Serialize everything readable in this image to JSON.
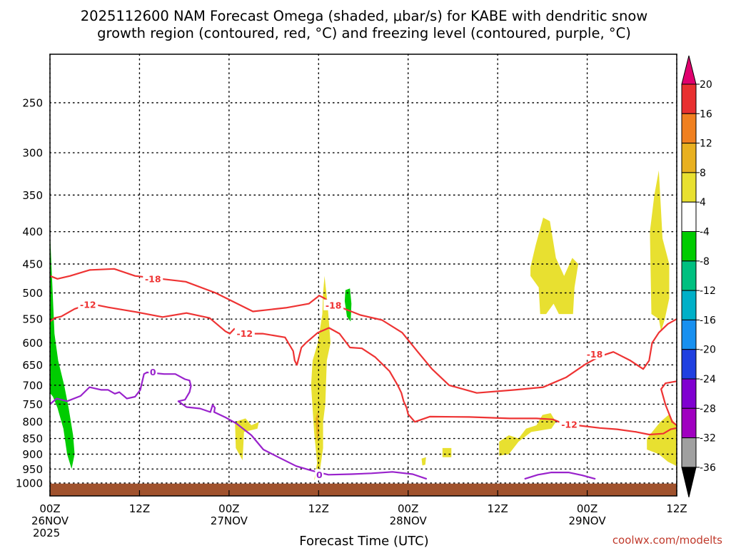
{
  "title_line1": "2025112600 NAM Forecast Omega (shaded, μbar/s) for KABE with dendritic snow",
  "title_line2": "growth region (contoured, red, °C) and freezing level (contoured, purple, °C)",
  "credit": "coolwx.com/modelts",
  "chart_data": {
    "type": "heatmap",
    "title": "2025112600 NAM Forecast Omega (shaded, μbar/s) for KABE with dendritic snow growth region (contoured, red, °C) and freezing level (contoured, purple, °C)",
    "xlabel": "Forecast Time (UTC)",
    "ylabel": "",
    "x_unit": "forecast hour",
    "xlim": [
      0,
      84
    ],
    "y_unit": "hPa",
    "y_scale": "log (pressure)",
    "ylim": [
      1030,
      200
    ],
    "x_ticks": [
      {
        "hour": 0,
        "lines": [
          "00Z",
          "26NOV",
          "2025"
        ]
      },
      {
        "hour": 12,
        "lines": [
          "12Z"
        ]
      },
      {
        "hour": 24,
        "lines": [
          "00Z",
          "27NOV"
        ]
      },
      {
        "hour": 36,
        "lines": [
          "12Z"
        ]
      },
      {
        "hour": 48,
        "lines": [
          "00Z",
          "28NOV"
        ]
      },
      {
        "hour": 60,
        "lines": [
          "12Z"
        ]
      },
      {
        "hour": 72,
        "lines": [
          "00Z",
          "29NOV"
        ]
      },
      {
        "hour": 84,
        "lines": [
          "12Z"
        ]
      }
    ],
    "y_ticks": [
      250,
      300,
      350,
      400,
      450,
      500,
      550,
      600,
      650,
      700,
      750,
      800,
      850,
      900,
      950,
      1000
    ],
    "grid": true,
    "colorbar": {
      "labels": [
        "20",
        "16",
        "12",
        "8",
        "4",
        "-4",
        "-8",
        "-12",
        "-16",
        "-20",
        "-24",
        "-28",
        "-32",
        "-36"
      ],
      "colors": [
        "#e0006e",
        "#e83030",
        "#f08020",
        "#e8b020",
        "#e8e030",
        "#ffffff",
        "#00cc00",
        "#00c080",
        "#00b0c8",
        "#1890f0",
        "#2040e0",
        "#8000d0",
        "#a000c0",
        "#a0a0a0",
        "#000000"
      ]
    },
    "surface": {
      "color": "#a0522d",
      "top_hpa": 1002
    },
    "shaded_regions": [
      {
        "level": "-4",
        "color": "#00cc00",
        "points": [
          [
            0,
            400
          ],
          [
            0.3,
            480
          ],
          [
            0.6,
            580
          ],
          [
            1.1,
            640
          ],
          [
            1.9,
            700
          ],
          [
            2.5,
            760
          ],
          [
            3.1,
            840
          ],
          [
            3.3,
            900
          ],
          [
            2.9,
            950
          ],
          [
            2.3,
            900
          ],
          [
            1.8,
            820
          ],
          [
            1.0,
            760
          ],
          [
            0.4,
            730
          ],
          [
            0,
            720
          ]
        ]
      },
      {
        "level": "-4",
        "color": "#00cc00",
        "points": [
          [
            39.6,
            495
          ],
          [
            40.2,
            492
          ],
          [
            40.4,
            520
          ],
          [
            40.3,
            555
          ],
          [
            39.8,
            545
          ],
          [
            39.5,
            515
          ]
        ]
      },
      {
        "level": "4",
        "color": "#e8e030",
        "points": [
          [
            35.4,
            990
          ],
          [
            35.8,
            930
          ],
          [
            35.4,
            830
          ],
          [
            35.0,
            700
          ],
          [
            35.2,
            640
          ],
          [
            35.9,
            600
          ],
          [
            36.5,
            540
          ],
          [
            36.6,
            500
          ],
          [
            36.8,
            470
          ],
          [
            37.2,
            520
          ],
          [
            37.6,
            600
          ],
          [
            37.1,
            640
          ],
          [
            36.9,
            750
          ],
          [
            36.6,
            800
          ],
          [
            36.6,
            880
          ],
          [
            36.2,
            950
          ]
        ]
      },
      {
        "level": "4",
        "color": "#e8e030",
        "points": [
          [
            24.8,
            800
          ],
          [
            26.2,
            790
          ],
          [
            27.0,
            810
          ],
          [
            28.0,
            800
          ],
          [
            27.8,
            820
          ],
          [
            26.0,
            830
          ],
          [
            25.9,
            880
          ],
          [
            25.8,
            920
          ],
          [
            24.9,
            880
          ]
        ]
      },
      {
        "level": "4",
        "color": "#e8e030",
        "points": [
          [
            49.8,
            915
          ],
          [
            50.4,
            910
          ],
          [
            50.3,
            935
          ],
          [
            49.9,
            938
          ]
        ]
      },
      {
        "level": "4",
        "color": "#e8e030",
        "points": [
          [
            52.6,
            880
          ],
          [
            53.8,
            880
          ],
          [
            53.8,
            910
          ],
          [
            52.6,
            910
          ]
        ]
      },
      {
        "level": "4",
        "color": "#e8e030",
        "points": [
          [
            60.2,
            860
          ],
          [
            61.5,
            840
          ],
          [
            62.8,
            850
          ],
          [
            63.8,
            820
          ],
          [
            65.2,
            810
          ],
          [
            66.0,
            780
          ],
          [
            67.1,
            775
          ],
          [
            67.8,
            800
          ],
          [
            67.2,
            820
          ],
          [
            64.5,
            830
          ],
          [
            62.8,
            860
          ],
          [
            61.5,
            900
          ],
          [
            60.2,
            905
          ]
        ]
      },
      {
        "level": "4",
        "color": "#e8e030",
        "points": [
          [
            64.4,
            455
          ],
          [
            65.1,
            420
          ],
          [
            66.1,
            380
          ],
          [
            67.0,
            385
          ],
          [
            67.8,
            440
          ],
          [
            68.9,
            470
          ],
          [
            70.0,
            440
          ],
          [
            70.8,
            450
          ],
          [
            70.3,
            490
          ],
          [
            70.1,
            540
          ],
          [
            68.2,
            540
          ],
          [
            67.5,
            520
          ],
          [
            66.5,
            540
          ],
          [
            65.7,
            540
          ],
          [
            65.5,
            490
          ],
          [
            64.4,
            470
          ]
        ]
      },
      {
        "level": "4",
        "color": "#e8e030",
        "points": [
          [
            80.4,
            400
          ],
          [
            81.0,
            350
          ],
          [
            81.6,
            320
          ],
          [
            82.1,
            410
          ],
          [
            83.0,
            450
          ],
          [
            83.0,
            510
          ],
          [
            82.4,
            550
          ],
          [
            81.9,
            575
          ],
          [
            81.6,
            550
          ],
          [
            80.6,
            540
          ]
        ]
      },
      {
        "level": "4",
        "color": "#e8e030",
        "points": [
          [
            80.0,
            850
          ],
          [
            81.8,
            800
          ],
          [
            82.9,
            780
          ],
          [
            84.0,
            810
          ],
          [
            84.0,
            940
          ],
          [
            82.8,
            925
          ],
          [
            81.6,
            900
          ],
          [
            80.0,
            885
          ]
        ]
      },
      {
        "level": "8",
        "color": "#e8b020",
        "points": [
          [
            35.6,
            790
          ],
          [
            35.9,
            770
          ],
          [
            36.1,
            830
          ],
          [
            35.8,
            860
          ]
        ]
      }
    ],
    "contours": [
      {
        "name": "-18",
        "color": "#ee3333",
        "points": [
          [
            0,
            470
          ],
          [
            1.0,
            475
          ],
          [
            2.7,
            470
          ],
          [
            5.3,
            460
          ],
          [
            8.6,
            458
          ],
          [
            11.4,
            470
          ],
          [
            14.9,
            475
          ],
          [
            18.2,
            480
          ],
          [
            22.2,
            500
          ],
          [
            27.2,
            535
          ],
          [
            31.6,
            528
          ],
          [
            34.7,
            520
          ],
          [
            36.1,
            505
          ],
          [
            36.8,
            510
          ],
          [
            37.7,
            520
          ],
          [
            39.5,
            530
          ],
          [
            41.6,
            542
          ],
          [
            44.5,
            552
          ],
          [
            47.2,
            578
          ],
          [
            49.3,
            620
          ],
          [
            51.2,
            660
          ],
          [
            53.5,
            700
          ],
          [
            57.2,
            720
          ],
          [
            62.3,
            712
          ],
          [
            66.1,
            705
          ],
          [
            69.2,
            680
          ],
          [
            71.8,
            648
          ],
          [
            73.7,
            630
          ],
          [
            75.5,
            620
          ],
          [
            77.8,
            640
          ],
          [
            79.5,
            660
          ],
          [
            80.3,
            640
          ],
          [
            80.7,
            600
          ],
          [
            81.6,
            578
          ],
          [
            82.8,
            560
          ],
          [
            84.0,
            550
          ]
        ]
      },
      {
        "name": "-12",
        "color": "#ee3333",
        "points": [
          [
            0,
            555
          ],
          [
            0.6,
            548
          ],
          [
            1.5,
            545
          ],
          [
            3.3,
            530
          ],
          [
            5.4,
            520
          ],
          [
            7.8,
            527
          ],
          [
            11.5,
            536
          ],
          [
            15.1,
            546
          ],
          [
            18.3,
            538
          ],
          [
            21.4,
            548
          ],
          [
            23.5,
            575
          ],
          [
            24.1,
            580
          ],
          [
            24.7,
            570
          ],
          [
            25.9,
            580
          ],
          [
            28.5,
            580
          ],
          [
            31.5,
            588
          ],
          [
            32.6,
            618
          ],
          [
            32.8,
            640
          ],
          [
            33.1,
            650
          ],
          [
            33.7,
            610
          ],
          [
            34.3,
            600
          ],
          [
            35.9,
            578
          ],
          [
            37.4,
            568
          ],
          [
            38.8,
            580
          ],
          [
            40.2,
            610
          ],
          [
            41.8,
            612
          ],
          [
            43.6,
            632
          ],
          [
            45.5,
            665
          ],
          [
            46.6,
            700
          ],
          [
            47.1,
            720
          ],
          [
            47.4,
            742
          ],
          [
            47.8,
            760
          ],
          [
            48.0,
            778
          ],
          [
            48.9,
            800
          ],
          [
            50.9,
            785
          ],
          [
            56.2,
            786
          ],
          [
            61.6,
            790
          ],
          [
            65.2,
            790
          ],
          [
            67.4,
            793
          ],
          [
            68.8,
            805
          ],
          [
            71.3,
            812
          ],
          [
            73.7,
            818
          ],
          [
            76.0,
            822
          ],
          [
            78.6,
            830
          ],
          [
            80.3,
            838
          ],
          [
            82.2,
            835
          ],
          [
            83.2,
            822
          ],
          [
            84.0,
            818
          ]
        ]
      },
      {
        "name": "-12b",
        "color": "#ee3333",
        "points": [
          [
            84.0,
            690
          ],
          [
            82.5,
            695
          ],
          [
            81.9,
            710
          ],
          [
            82.5,
            752
          ],
          [
            83.4,
            800
          ],
          [
            84.0,
            810
          ]
        ]
      },
      {
        "name": "0",
        "color": "#9922cc",
        "points": [
          [
            0,
            750
          ],
          [
            0.9,
            735
          ],
          [
            2.3,
            742
          ],
          [
            4.1,
            728
          ],
          [
            5.3,
            705
          ],
          [
            6.9,
            712
          ],
          [
            7.8,
            712
          ],
          [
            8.7,
            722
          ],
          [
            9.3,
            718
          ],
          [
            10.3,
            735
          ],
          [
            11.4,
            730
          ],
          [
            12.1,
            712
          ],
          [
            12.6,
            672
          ],
          [
            13.0,
            668
          ],
          [
            15.3,
            672
          ],
          [
            16.8,
            672
          ],
          [
            18.1,
            685
          ],
          [
            18.7,
            688
          ],
          [
            18.9,
            702
          ],
          [
            18.7,
            718
          ],
          [
            18.1,
            738
          ],
          [
            17.2,
            742
          ],
          [
            18.3,
            758
          ],
          [
            20.1,
            762
          ],
          [
            21.5,
            772
          ],
          [
            21.8,
            752
          ],
          [
            22.1,
            760
          ],
          [
            22.0,
            772
          ],
          [
            23.6,
            788
          ],
          [
            25.0,
            805
          ],
          [
            27.0,
            840
          ],
          [
            28.6,
            885
          ],
          [
            30.6,
            910
          ],
          [
            33.0,
            940
          ],
          [
            35.0,
            955
          ],
          [
            37.3,
            970
          ],
          [
            40.4,
            968
          ],
          [
            43.1,
            965
          ],
          [
            45.9,
            960
          ],
          [
            48.6,
            968
          ],
          [
            50.5,
            985
          ]
        ]
      },
      {
        "name": "0b",
        "color": "#9922cc",
        "points": [
          [
            63.6,
            985
          ],
          [
            65.4,
            970
          ],
          [
            67.2,
            962
          ],
          [
            69.5,
            962
          ],
          [
            71.3,
            972
          ],
          [
            73.1,
            985
          ]
        ]
      }
    ],
    "contour_labels": [
      {
        "text": "-18",
        "color": "#ee3333",
        "x": 13.8,
        "y_hpa": 475
      },
      {
        "text": "-18",
        "color": "#ee3333",
        "x": 38.0,
        "y_hpa": 523
      },
      {
        "text": "-18",
        "color": "#ee3333",
        "x": 73.0,
        "y_hpa": 625
      },
      {
        "text": "-12",
        "color": "#ee3333",
        "x": 5.1,
        "y_hpa": 522
      },
      {
        "text": "-12",
        "color": "#ee3333",
        "x": 26.1,
        "y_hpa": 580
      },
      {
        "text": "-12",
        "color": "#ee3333",
        "x": 69.6,
        "y_hpa": 808
      },
      {
        "text": "0",
        "color": "#9922cc",
        "x": 13.8,
        "y_hpa": 667
      },
      {
        "text": "0",
        "color": "#9922cc",
        "x": 36.1,
        "y_hpa": 970
      }
    ]
  }
}
